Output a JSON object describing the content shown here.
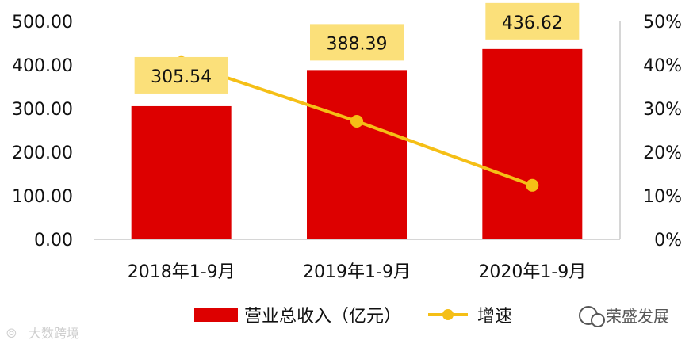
{
  "chart_data": {
    "type": "bar",
    "categories": [
      "2018年1-9月",
      "2019年1-9月",
      "2020年1-9月"
    ],
    "series": [
      {
        "name": "营业总收入（亿元）",
        "type": "bar",
        "axis": "left",
        "values": [
          305.54,
          388.39,
          436.62
        ],
        "color": "#dd0000"
      },
      {
        "name": "增速",
        "type": "line",
        "axis": "right",
        "values": [
          40.6,
          27.1,
          12.4
        ],
        "color": "#f5bf16"
      }
    ],
    "data_labels": [
      "305.54",
      "388.39",
      "436.62"
    ],
    "label_box_color": "#fbe07a",
    "ylim_left": [
      0,
      500
    ],
    "ylim_right": [
      0,
      50
    ],
    "left_ticks": [
      "0.00",
      "100.00",
      "200.00",
      "300.00",
      "400.00",
      "500.00"
    ],
    "right_ticks": [
      "0%",
      "10%",
      "20%",
      "30%",
      "40%",
      "50%"
    ],
    "grid": false,
    "legend_position": "bottom"
  },
  "watermarks": {
    "left": "大数跨境",
    "right": "荣盛发展"
  }
}
